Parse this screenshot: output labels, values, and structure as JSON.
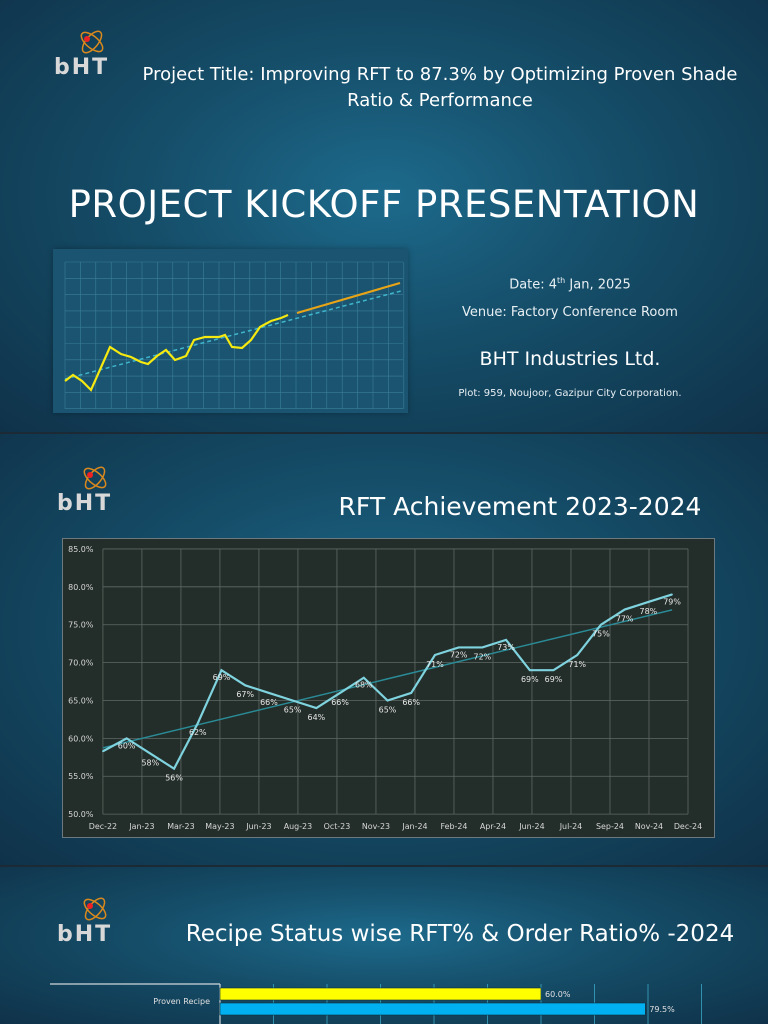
{
  "slide1": {
    "logo_text": "BHT",
    "project_title": "Project Title: Improving RFT to 87.3% by Optimizing Proven Shade Ratio & Performance",
    "heading": "PROJECT KICKOFF PRESENTATION",
    "date_prefix": "Date: 4",
    "date_sup": "th",
    "date_suffix": " Jan, 2025",
    "venue": "Venue: Factory Conference Room",
    "company": "BHT Industries Ltd.",
    "address": "Plot: 959, Noujoor, Gazipur City Corporation.",
    "colors": {
      "line": "#f5e90f",
      "forecast": "#e8a417",
      "trend": "#3fb5cc"
    }
  },
  "slide2": {
    "logo_text": "BHT",
    "title": "RFT Achievement 2023-2024"
  },
  "slide3": {
    "logo_text": "BHT",
    "title": "Recipe Status wise RFT% & Order Ratio% -2024"
  },
  "chart_data": [
    {
      "type": "line",
      "title": "RFT Achievement 2023-2024",
      "y_ticks": [
        "50.0%",
        "55.0%",
        "60.0%",
        "65.0%",
        "70.0%",
        "75.0%",
        "80.0%",
        "85.0%"
      ],
      "ylim": [
        50,
        85
      ],
      "x_ticks": [
        "Dec-22",
        "Jan-23",
        "Mar-23",
        "May-23",
        "Jun-23",
        "Aug-23",
        "Oct-23",
        "Nov-23",
        "Jan-24",
        "Feb-24",
        "Apr-24",
        "Jun-24",
        "Jul-24",
        "Sep-24",
        "Nov-24",
        "Dec-24"
      ],
      "grid": true,
      "trendline": true,
      "line_color": "#7fd3df",
      "trend_color": "#2a8a96",
      "series": [
        {
          "x": [
            "Dec-22",
            "Jan-23",
            "Feb-23",
            "Mar-23",
            "Apr-23",
            "May-23",
            "Jun-23",
            "Jul-23",
            "Aug-23",
            "Sep-23",
            "Oct-23",
            "Nov-23",
            "Dec-23",
            "Jan-24",
            "Feb-24",
            "Mar-24",
            "Apr-24",
            "May-24",
            "Jun-24",
            "Jul-24",
            "Aug-24",
            "Sep-24",
            "Oct-24",
            "Nov-24",
            "Dec-24"
          ],
          "values": [
            58.3,
            60,
            58,
            56,
            62,
            69,
            67,
            66,
            65,
            64,
            66,
            68,
            65,
            66,
            71,
            72,
            72,
            73,
            69,
            69,
            71,
            75,
            77,
            78,
            79
          ],
          "labels": [
            "",
            "60%",
            "58%",
            "56%",
            "62%",
            "69%",
            "67%",
            "66%",
            "65%",
            "64%",
            "66%",
            "68%",
            "65%",
            "66%",
            "71%",
            "72%",
            "72%",
            "73%",
            "69%",
            "69%",
            "71%",
            "75%",
            "77%",
            "78%",
            "79%"
          ]
        }
      ]
    },
    {
      "type": "bar",
      "orientation": "horizontal",
      "title": "Recipe Status wise RFT% & Order Ratio% -2024",
      "categories": [
        "Proven Recipe"
      ],
      "grid_step": 10,
      "series": [
        {
          "values": [
            60.0
          ],
          "label": "60.0%",
          "color": "#ffff00"
        },
        {
          "values": [
            79.5
          ],
          "label": "79.5%",
          "color": "#00b0f0"
        }
      ]
    }
  ]
}
